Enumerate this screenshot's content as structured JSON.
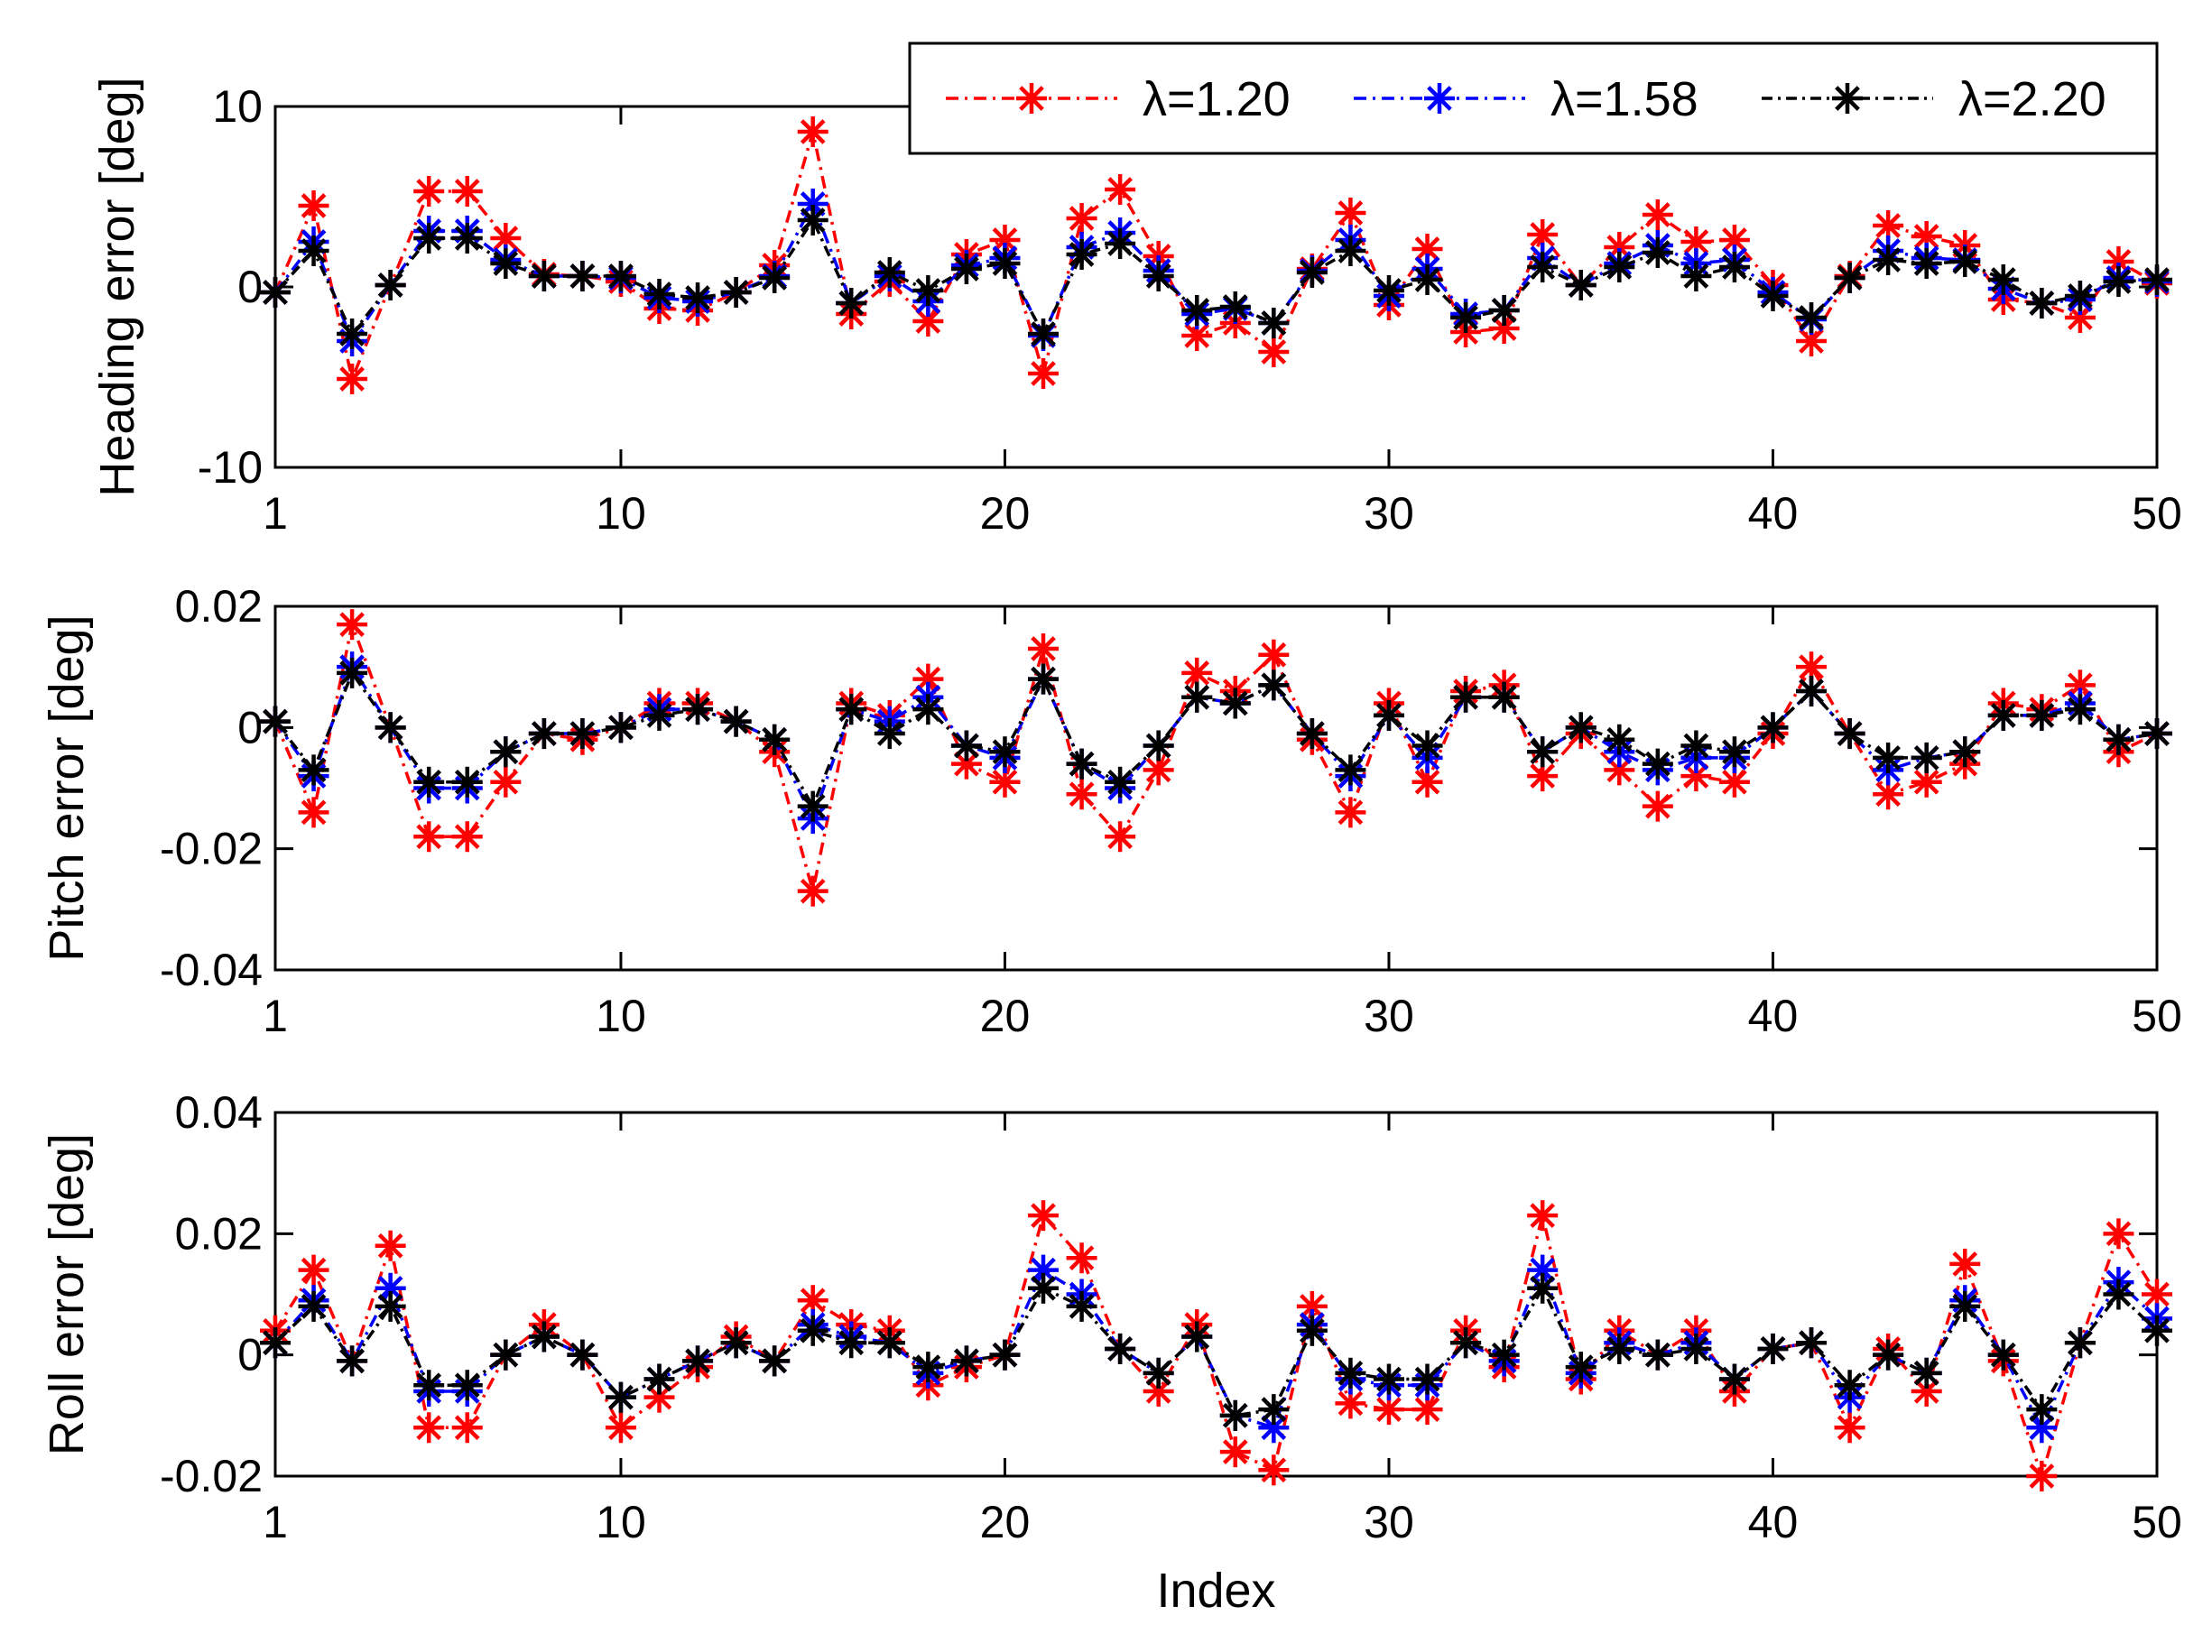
{
  "chart_data": [
    {
      "type": "line",
      "title": "",
      "xlabel": "",
      "ylabel": "Heading error [deg]",
      "xlim": [
        1,
        50
      ],
      "ylim": [
        -10,
        10
      ],
      "xticks": [
        1,
        10,
        20,
        30,
        40,
        50
      ],
      "yticks": [
        -10,
        0,
        10
      ],
      "x": [
        1,
        2,
        3,
        4,
        5,
        6,
        7,
        8,
        9,
        10,
        11,
        12,
        13,
        14,
        15,
        16,
        17,
        18,
        19,
        20,
        21,
        22,
        23,
        24,
        25,
        26,
        27,
        28,
        29,
        30,
        31,
        32,
        33,
        34,
        35,
        36,
        37,
        38,
        39,
        40,
        41,
        42,
        43,
        44,
        45,
        46,
        47,
        48,
        49,
        50
      ],
      "legend": {
        "position": "top-right"
      },
      "series": [
        {
          "name": "λ=1.20",
          "color": "#ff0000",
          "values": [
            -0.3,
            4.5,
            -5.1,
            0.1,
            5.3,
            5.3,
            2.7,
            0.7,
            0.6,
            0.3,
            -1.2,
            -1.3,
            -0.3,
            1.2,
            8.6,
            -1.5,
            0.3,
            -1.9,
            1.8,
            2.6,
            -4.8,
            3.8,
            5.4,
            1.7,
            -2.7,
            -2.0,
            -3.6,
            1.0,
            4.1,
            -1.0,
            2.1,
            -2.5,
            -2.3,
            2.9,
            0.1,
            2.2,
            4.0,
            2.5,
            2.6,
            0.1,
            -3.0,
            0.6,
            3.4,
            2.8,
            2.3,
            -0.7,
            -0.9,
            -1.7,
            1.4,
            0.2
          ]
        },
        {
          "name": "λ=1.58",
          "color": "#0000ff",
          "values": [
            -0.3,
            2.5,
            -3.0,
            0.1,
            3.1,
            3.1,
            1.5,
            0.6,
            0.6,
            0.5,
            -0.6,
            -0.8,
            -0.3,
            0.6,
            4.6,
            -0.9,
            0.6,
            -0.8,
            1.2,
            1.6,
            -2.7,
            2.2,
            3.0,
            0.9,
            -1.5,
            -1.2,
            -2.0,
            0.9,
            2.6,
            -0.5,
            1.0,
            -1.5,
            -1.3,
            1.6,
            0.1,
            1.3,
            2.3,
            1.3,
            1.5,
            -0.3,
            -1.8,
            0.5,
            2.0,
            1.6,
            1.5,
            -0.1,
            -0.9,
            -0.7,
            0.5,
            0.3
          ]
        },
        {
          "name": "λ=2.20",
          "color": "#000000",
          "values": [
            -0.3,
            2.0,
            -2.6,
            0.1,
            2.7,
            2.7,
            1.3,
            0.6,
            0.6,
            0.6,
            -0.4,
            -0.6,
            -0.3,
            0.5,
            3.7,
            -0.9,
            0.8,
            -0.2,
            1.0,
            1.3,
            -2.6,
            1.8,
            2.4,
            0.6,
            -1.3,
            -1.1,
            -2.0,
            0.8,
            2.0,
            -0.2,
            0.4,
            -1.7,
            -1.3,
            1.1,
            0.1,
            1.1,
            1.9,
            0.6,
            1.1,
            -0.5,
            -1.7,
            0.5,
            1.5,
            1.3,
            1.4,
            0.4,
            -0.9,
            -0.5,
            0.3,
            0.4
          ]
        }
      ]
    },
    {
      "type": "line",
      "title": "",
      "xlabel": "",
      "ylabel": "Pitch error [deg]",
      "xlim": [
        1,
        50
      ],
      "ylim": [
        -0.04,
        0.02
      ],
      "xticks": [
        1,
        10,
        20,
        30,
        40,
        50
      ],
      "yticks": [
        -0.04,
        -0.02,
        0,
        0.02
      ],
      "ytick_labels": [
        "-0.04",
        "-0.02",
        "0",
        "0.02"
      ],
      "x": [
        1,
        2,
        3,
        4,
        5,
        6,
        7,
        8,
        9,
        10,
        11,
        12,
        13,
        14,
        15,
        16,
        17,
        18,
        19,
        20,
        21,
        22,
        23,
        24,
        25,
        26,
        27,
        28,
        29,
        30,
        31,
        32,
        33,
        34,
        35,
        36,
        37,
        38,
        39,
        40,
        41,
        42,
        43,
        44,
        45,
        46,
        47,
        48,
        49,
        50
      ],
      "series": [
        {
          "name": "λ=1.20",
          "color": "#ff0000",
          "values": [
            0.001,
            -0.014,
            0.017,
            0.0,
            -0.018,
            -0.018,
            -0.009,
            -0.001,
            -0.002,
            0.0,
            0.004,
            0.004,
            0.001,
            -0.004,
            -0.027,
            0.004,
            0.002,
            0.008,
            -0.006,
            -0.009,
            0.013,
            -0.011,
            -0.018,
            -0.007,
            0.009,
            0.006,
            0.012,
            -0.002,
            -0.014,
            0.004,
            -0.009,
            0.006,
            0.007,
            -0.008,
            -0.001,
            -0.007,
            -0.013,
            -0.008,
            -0.009,
            -0.001,
            0.01,
            -0.001,
            -0.011,
            -0.009,
            -0.006,
            0.004,
            0.003,
            0.007,
            -0.004,
            -0.001
          ]
        },
        {
          "name": "λ=1.58",
          "color": "#0000ff",
          "values": [
            0.001,
            -0.008,
            0.01,
            0.0,
            -0.01,
            -0.01,
            -0.004,
            -0.001,
            -0.001,
            0.0,
            0.003,
            0.003,
            0.001,
            -0.002,
            -0.015,
            0.003,
            0.001,
            0.005,
            -0.003,
            -0.005,
            0.008,
            -0.006,
            -0.01,
            -0.003,
            0.005,
            0.004,
            0.007,
            -0.001,
            -0.008,
            0.002,
            -0.005,
            0.005,
            0.005,
            -0.004,
            0.0,
            -0.004,
            -0.007,
            -0.005,
            -0.005,
            0.0,
            0.006,
            -0.001,
            -0.007,
            -0.005,
            -0.004,
            0.002,
            0.002,
            0.004,
            -0.002,
            -0.001
          ]
        },
        {
          "name": "λ=2.20",
          "color": "#000000",
          "values": [
            0.001,
            -0.007,
            0.009,
            0.0,
            -0.009,
            -0.009,
            -0.004,
            -0.001,
            -0.001,
            0.0,
            0.002,
            0.003,
            0.001,
            -0.002,
            -0.013,
            0.003,
            -0.001,
            0.003,
            -0.003,
            -0.004,
            0.008,
            -0.006,
            -0.009,
            -0.003,
            0.005,
            0.004,
            0.007,
            -0.001,
            -0.007,
            0.002,
            -0.003,
            0.005,
            0.005,
            -0.004,
            0.0,
            -0.002,
            -0.006,
            -0.003,
            -0.004,
            0.0,
            0.006,
            -0.001,
            -0.005,
            -0.005,
            -0.004,
            0.002,
            0.002,
            0.003,
            -0.002,
            -0.001
          ]
        }
      ]
    },
    {
      "type": "line",
      "title": "",
      "xlabel": "Index",
      "ylabel": "Roll error [deg]",
      "xlim": [
        1,
        50
      ],
      "ylim": [
        -0.02,
        0.04
      ],
      "xticks": [
        1,
        10,
        20,
        30,
        40,
        50
      ],
      "yticks": [
        -0.02,
        0,
        0.02,
        0.04
      ],
      "ytick_labels": [
        "-0.02",
        "0",
        "0.02",
        "0.04"
      ],
      "x": [
        1,
        2,
        3,
        4,
        5,
        6,
        7,
        8,
        9,
        10,
        11,
        12,
        13,
        14,
        15,
        16,
        17,
        18,
        19,
        20,
        21,
        22,
        23,
        24,
        25,
        26,
        27,
        28,
        29,
        30,
        31,
        32,
        33,
        34,
        35,
        36,
        37,
        38,
        39,
        40,
        41,
        42,
        43,
        44,
        45,
        46,
        47,
        48,
        49,
        50
      ],
      "series": [
        {
          "name": "λ=1.20",
          "color": "#ff0000",
          "values": [
            0.004,
            0.014,
            -0.001,
            0.018,
            -0.012,
            -0.012,
            0.0,
            0.005,
            0.0,
            -0.012,
            -0.007,
            -0.002,
            0.003,
            -0.001,
            0.009,
            0.005,
            0.004,
            -0.005,
            -0.002,
            0.0,
            0.023,
            0.016,
            0.001,
            -0.006,
            0.005,
            -0.016,
            -0.019,
            0.008,
            -0.008,
            -0.009,
            -0.009,
            0.004,
            -0.002,
            0.023,
            -0.004,
            0.004,
            0.0,
            0.004,
            -0.006,
            0.001,
            0.002,
            -0.012,
            0.001,
            -0.006,
            0.015,
            -0.001,
            -0.02,
            0.002,
            0.02,
            0.01
          ]
        },
        {
          "name": "λ=1.58",
          "color": "#0000ff",
          "values": [
            0.002,
            0.009,
            -0.001,
            0.011,
            -0.006,
            -0.006,
            0.0,
            0.003,
            0.0,
            -0.007,
            -0.004,
            -0.001,
            0.002,
            -0.001,
            0.005,
            0.003,
            0.002,
            -0.003,
            -0.001,
            0.0,
            0.014,
            0.01,
            0.001,
            -0.003,
            0.003,
            -0.01,
            -0.012,
            0.005,
            -0.004,
            -0.005,
            -0.005,
            0.002,
            -0.001,
            0.014,
            -0.003,
            0.002,
            0.0,
            0.002,
            -0.004,
            0.001,
            0.002,
            -0.007,
            0.0,
            -0.003,
            0.009,
            0.0,
            -0.012,
            0.002,
            0.012,
            0.006
          ]
        },
        {
          "name": "λ=2.20",
          "color": "#000000",
          "values": [
            0.002,
            0.008,
            -0.001,
            0.008,
            -0.005,
            -0.005,
            0.0,
            0.003,
            0.0,
            -0.007,
            -0.004,
            -0.001,
            0.002,
            -0.001,
            0.004,
            0.002,
            0.002,
            -0.002,
            -0.001,
            0.0,
            0.011,
            0.008,
            0.001,
            -0.003,
            0.003,
            -0.01,
            -0.009,
            0.004,
            -0.003,
            -0.004,
            -0.004,
            0.002,
            0.0,
            0.011,
            -0.002,
            0.001,
            0.0,
            0.001,
            -0.004,
            0.001,
            0.002,
            -0.005,
            0.0,
            -0.003,
            0.008,
            0.0,
            -0.009,
            0.002,
            0.01,
            0.004
          ]
        }
      ]
    }
  ]
}
